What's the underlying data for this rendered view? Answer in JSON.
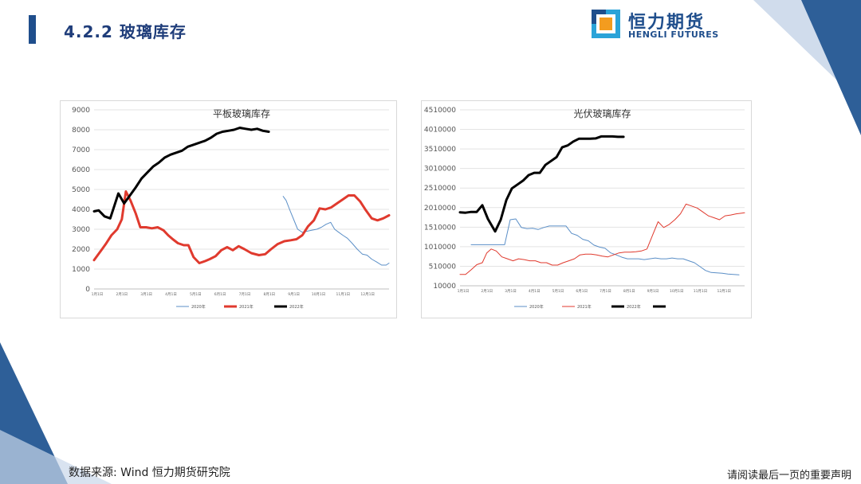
{
  "header": {
    "title": "4.2.2  玻璃库存"
  },
  "logo": {
    "name_cn": "恒力期货",
    "name_en": "HENGLI FUTURES"
  },
  "footer": {
    "source": "数据来源: Wind  恒力期货研究院",
    "notice": "请阅读最后一页的重要声明"
  },
  "colors": {
    "accent": "#1f4e8c",
    "light_blue": "#c9d7ea",
    "series_2020": "#5b8fc7",
    "series_2021": "#e03a2e",
    "series_2022": "#000000"
  },
  "chart_data": [
    {
      "type": "line",
      "title": "平板玻璃库存",
      "xlabel": "",
      "ylabel": "",
      "ylim": [
        0,
        9000
      ],
      "yticks": [
        "0",
        "1000",
        "2000",
        "3000",
        "4000",
        "5000",
        "6000",
        "7000",
        "8000",
        "9000"
      ],
      "xticks": [
        "1月1日",
        "2月1日",
        "3月1日",
        "4月1日",
        "5月1日",
        "6月1日",
        "7月1日",
        "8月1日",
        "9月1日",
        "10月1日",
        "11月1日",
        "12月1日"
      ],
      "legend": [
        "2020年",
        "2021年",
        "2022年"
      ],
      "legend_position": "bottom",
      "series": [
        {
          "name": "2020年",
          "x": [
            33.7,
            34.2,
            34.8,
            35.5,
            36.2,
            37,
            37.8,
            38.6,
            39.5,
            40.3,
            41.1,
            41.9,
            42.6,
            43.3,
            44,
            44.8,
            45.6,
            46.5,
            47.4,
            48.2,
            49,
            49.9,
            50.7,
            51.5,
            52
          ],
          "values": [
            4650,
            4450,
            4000,
            3500,
            3000,
            2850,
            2900,
            2950,
            3000,
            3100,
            3250,
            3350,
            3000,
            2850,
            2700,
            2550,
            2300,
            2000,
            1750,
            1700,
            1500,
            1350,
            1200,
            1200,
            1300
          ]
        },
        {
          "name": "2021年",
          "x": [
            1,
            2,
            3,
            4,
            5,
            5.8,
            6.5,
            7.3,
            8.2,
            9,
            10,
            11,
            12,
            13,
            13.8,
            14.6,
            15.5,
            16.5,
            17.3,
            18.2,
            19.2,
            20.2,
            21,
            22,
            23,
            24,
            25,
            26,
            27,
            28.2,
            29.5,
            30.6,
            31.6,
            32.7,
            33.9,
            35,
            36,
            37,
            38,
            39,
            40,
            41,
            42,
            43,
            44,
            45,
            46,
            47,
            48,
            49,
            50,
            51,
            52
          ],
          "values": [
            1450,
            1850,
            2250,
            2700,
            3000,
            3500,
            4900,
            4450,
            3800,
            3100,
            3100,
            3050,
            3100,
            2950,
            2700,
            2500,
            2300,
            2200,
            2200,
            1600,
            1300,
            1400,
            1500,
            1650,
            1950,
            2100,
            1950,
            2150,
            2000,
            1800,
            1700,
            1750,
            2000,
            2250,
            2400,
            2450,
            2500,
            2700,
            3150,
            3450,
            4050,
            4000,
            4100,
            4300,
            4500,
            4700,
            4700,
            4400,
            3950,
            3550,
            3450,
            3550,
            3700
          ]
        },
        {
          "name": "2022年",
          "x": [
            1,
            1.8,
            2.8,
            3.8,
            5.2,
            6.2,
            7.2,
            8.2,
            9.2,
            10.2,
            11.2,
            12.2,
            13.2,
            14.2,
            15.2,
            16.2,
            17.2,
            18.2,
            19.2,
            20.2,
            21.2,
            22.2,
            23.2,
            24.2,
            25.2,
            26.2,
            27.2,
            28.2,
            29.2,
            30.2,
            31.2
          ],
          "values": [
            3900,
            3950,
            3650,
            3550,
            4800,
            4300,
            4700,
            5100,
            5550,
            5850,
            6150,
            6350,
            6600,
            6750,
            6850,
            6950,
            7150,
            7250,
            7350,
            7450,
            7600,
            7800,
            7900,
            7950,
            8000,
            8100,
            8050,
            8000,
            8050,
            7950,
            7900
          ]
        }
      ]
    },
    {
      "type": "line",
      "title": "光伏玻璃库存",
      "xlabel": "",
      "ylabel": "",
      "ylim": [
        10000,
        4510000
      ],
      "yticks": [
        "10000",
        "510000",
        "1010000",
        "1510000",
        "2010000",
        "2510000",
        "3010000",
        "3510000",
        "4010000",
        "4510000"
      ],
      "xticks": [
        "1月1日",
        "2月1日",
        "3月1日",
        "4月1日",
        "5月1日",
        "6月1日",
        "7月1日",
        "8月1日",
        "9月1日",
        "10月1日",
        "11月1日",
        "12月1日"
      ],
      "legend": [
        "2020年",
        "2021年",
        "2022年",
        ""
      ],
      "legend_position": "bottom",
      "series": [
        {
          "name": "2020年",
          "x": [
            3,
            4,
            5,
            6,
            7,
            8,
            9,
            10,
            11,
            12,
            13,
            14,
            15,
            16,
            17,
            18,
            19,
            20,
            21,
            22,
            23,
            24,
            25,
            26,
            27,
            28,
            29,
            30,
            31,
            32,
            33,
            34,
            35,
            36,
            37,
            38,
            39,
            40,
            41,
            42,
            43,
            44,
            45,
            46,
            47,
            48,
            49,
            50,
            51
          ],
          "values": [
            1060000,
            1060000,
            1060000,
            1060000,
            1060000,
            1060000,
            1060000,
            1700000,
            1720000,
            1500000,
            1470000,
            1480000,
            1450000,
            1500000,
            1540000,
            1540000,
            1540000,
            1540000,
            1350000,
            1300000,
            1200000,
            1160000,
            1050000,
            1000000,
            970000,
            850000,
            800000,
            740000,
            700000,
            700000,
            700000,
            680000,
            700000,
            720000,
            700000,
            700000,
            720000,
            700000,
            700000,
            650000,
            600000,
            500000,
            400000,
            350000,
            340000,
            330000,
            310000,
            300000,
            290000
          ]
        },
        {
          "name": "2021年",
          "x": [
            1,
            2,
            3,
            4,
            5,
            5.8,
            6.6,
            7.5,
            8.5,
            9.5,
            10.5,
            11.5,
            12.5,
            13.5,
            14.5,
            15.5,
            16.5,
            17.5,
            18.5,
            19.5,
            20.5,
            21.5,
            22.5,
            23.5,
            24.5,
            25.5,
            26.5,
            27.5,
            28.5,
            29.5,
            30.5,
            31.5,
            32.5,
            33.5,
            34.5,
            35.5,
            36.5,
            37.5,
            38.5,
            39.5,
            40.5,
            41.5,
            42.5,
            43.5,
            44.5,
            45.5,
            46.5,
            47.5,
            48.5,
            49.5,
            50.5,
            51.5,
            52
          ],
          "values": [
            300000,
            300000,
            420000,
            550000,
            600000,
            850000,
            950000,
            900000,
            750000,
            700000,
            650000,
            700000,
            680000,
            650000,
            650000,
            600000,
            600000,
            540000,
            540000,
            600000,
            650000,
            700000,
            800000,
            820000,
            820000,
            800000,
            770000,
            750000,
            800000,
            850000,
            870000,
            870000,
            880000,
            900000,
            950000,
            1300000,
            1650000,
            1500000,
            1580000,
            1700000,
            1850000,
            2100000,
            2050000,
            2000000,
            1900000,
            1800000,
            1750000,
            1700000,
            1800000,
            1820000,
            1850000,
            1870000,
            1880000
          ]
        },
        {
          "name": "2022年",
          "x": [
            1,
            2,
            3,
            4,
            5,
            6,
            7.3,
            8.3,
            9.3,
            10.3,
            11.3,
            12.3,
            13.3,
            14.3,
            15.3,
            16.3,
            17.3,
            18.3,
            19.3,
            20.3,
            21.3,
            22.3,
            23.3,
            24.3,
            25.3,
            26.3,
            27.3,
            28.3,
            29.3,
            30.3
          ],
          "values": [
            1890000,
            1880000,
            1900000,
            1900000,
            2070000,
            1720000,
            1400000,
            1700000,
            2200000,
            2500000,
            2600000,
            2700000,
            2840000,
            2900000,
            2900000,
            3100000,
            3200000,
            3300000,
            3550000,
            3600000,
            3700000,
            3770000,
            3770000,
            3770000,
            3780000,
            3830000,
            3830000,
            3830000,
            3820000,
            3820000
          ]
        },
        {
          "name": "",
          "x": [],
          "values": []
        }
      ]
    }
  ]
}
